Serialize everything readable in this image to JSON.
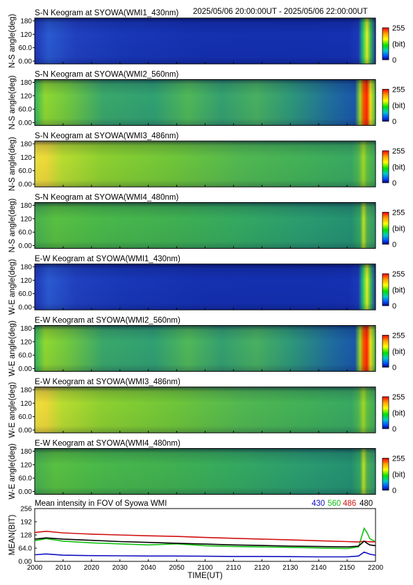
{
  "header": {
    "time_range": "2025/05/06 20:00:00UT - 2025/05/06 22:00:00UT"
  },
  "colorbar": {
    "max_label": "255",
    "unit_label": "(bit)",
    "min_label": "0"
  },
  "keograms": [
    {
      "title": "S-N Keogram at SYOWA(WMI1_430nm)",
      "ylabel": "N-S angle(deg)",
      "yticks": [
        "180",
        "120",
        "60.0",
        "0.00"
      ],
      "color_profile": "blue-dim"
    },
    {
      "title": "S-N Keogram at SYOWA(WMI2_560nm)",
      "ylabel": "N-S angle(deg)",
      "yticks": [
        "180",
        "120",
        "60.0",
        "0.00"
      ],
      "color_profile": "green-bright"
    },
    {
      "title": "S-N Keogram at SYOWA(WMI3_486nm)",
      "ylabel": "N-S angle(deg)",
      "yticks": [
        "180",
        "120",
        "60.0",
        "0.00"
      ],
      "color_profile": "green-yellow"
    },
    {
      "title": "S-N Keogram at SYOWA(WMI4_480nm)",
      "ylabel": "N-S angle(deg)",
      "yticks": [
        "180",
        "120",
        "60.0",
        "0.00"
      ],
      "color_profile": "green"
    },
    {
      "title": "E-W Keogram at SYOWA(WMI1_430nm)",
      "ylabel": "W-E angle(deg)",
      "yticks": [
        "180",
        "120",
        "60.0",
        "0.00"
      ],
      "color_profile": "blue-dim"
    },
    {
      "title": "E-W Keogram at SYOWA(WMI2_560nm)",
      "ylabel": "W-E angle(deg)",
      "yticks": [
        "180",
        "120",
        "60.0",
        "0.00"
      ],
      "color_profile": "green-bright"
    },
    {
      "title": "E-W Keogram at SYOWA(WMI3_486nm)",
      "ylabel": "W-E angle(deg)",
      "yticks": [
        "180",
        "120",
        "60.0",
        "0.00"
      ],
      "color_profile": "green-yellow"
    },
    {
      "title": "E-W Keogram at SYOWA(WMI4_480nm)",
      "ylabel": "W-E angle(deg)",
      "yticks": [
        "180",
        "120",
        "60.0",
        "0.00"
      ],
      "color_profile": "green"
    }
  ],
  "colors": {
    "s430": "#1010c0",
    "s560": "#10c010",
    "s486": "#d01010",
    "s480": "#000000",
    "frame": "#000000"
  },
  "chart_data": {
    "type": "line",
    "title": "Mean intensity in FOV of Syowa WMI",
    "xlabel": "TIME(UT)",
    "ylabel": "MEAN(BIT)",
    "xlim": [
      2000,
      2200
    ],
    "ylim": [
      0,
      256
    ],
    "x_ticks": [
      "2000",
      "2010",
      "2020",
      "2030",
      "2040",
      "2050",
      "2100",
      "2110",
      "2120",
      "2130",
      "2140",
      "2150",
      "2200"
    ],
    "y_ticks": [
      "256",
      "192",
      "128",
      "64.0",
      "0.00"
    ],
    "x": [
      2000,
      2004,
      2010,
      2020,
      2030,
      2040,
      2050,
      2100,
      2110,
      2120,
      2130,
      2140,
      2150,
      2154,
      2156,
      2157,
      2158,
      2200
    ],
    "series": [
      {
        "name": "430",
        "values": [
          32,
          36,
          30,
          28,
          27,
          26,
          26,
          25,
          24,
          24,
          23,
          22,
          22,
          26,
          45,
          40,
          35,
          30
        ]
      },
      {
        "name": "560",
        "values": [
          100,
          110,
          98,
          90,
          85,
          80,
          85,
          76,
          72,
          70,
          68,
          65,
          62,
          70,
          160,
          140,
          110,
          95
        ]
      },
      {
        "name": "486",
        "values": [
          140,
          146,
          138,
          132,
          128,
          124,
          121,
          116,
          112,
          108,
          104,
          100,
          96,
          94,
          98,
          96,
          95,
          95
        ]
      },
      {
        "name": "480",
        "values": [
          108,
          114,
          108,
          102,
          96,
          92,
          88,
          84,
          80,
          77,
          74,
          72,
          70,
          74,
          98,
          88,
          80,
          76
        ]
      }
    ]
  }
}
